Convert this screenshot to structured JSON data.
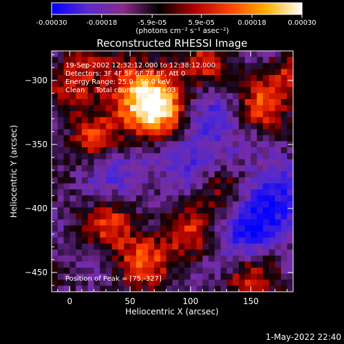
{
  "chart_data": {
    "type": "heatmap",
    "title": "Reconstructed RHESSI Image",
    "xlabel": "Heliocentric X (arcsec)",
    "ylabel": "Heliocentric Y (arcsec)",
    "xlim": [
      -15,
      185
    ],
    "ylim": [
      -465,
      -277
    ],
    "xticks": [
      0,
      50,
      100,
      150
    ],
    "yticks": [
      -300,
      -350,
      -400,
      -450
    ],
    "grid": false,
    "colorbar": {
      "range": [
        -0.0003,
        0.0003
      ],
      "ticks": [
        "-0.00030",
        "-0.00018",
        "-5.9e-05",
        "5.9e-05",
        "0.00018",
        "0.00030"
      ],
      "unit_text": "(photons cm⁻² s⁻¹ asec⁻²)",
      "colormap": [
        "#0000ff",
        "#5a2bcc",
        "#8a2a8a",
        "#000000",
        "#b00000",
        "#ff4500",
        "#ffb000",
        "#ffffff"
      ]
    },
    "annotations": [
      "19-Sep-2002 12:32:12.000 to 12:38:12.000",
      "Detectors: 3F 4F 5F 6F 7F 8F, Att 0",
      "Energy Range: 25.0 - 50.0 keV",
      "Clean     Total counts: 4.97E+03"
    ],
    "peak_text": "Position of Peak = [75,-327]",
    "peak": {
      "x": 75,
      "y": -327,
      "value": 0.0003
    },
    "bright_sources": [
      {
        "x": 75,
        "y": -327,
        "amp": 1.0,
        "w": 18
      },
      {
        "x": 55,
        "y": -310,
        "amp": 0.6,
        "w": 22
      },
      {
        "x": 160,
        "y": -322,
        "amp": 0.6,
        "w": 14
      },
      {
        "x": 178,
        "y": -298,
        "amp": 0.45,
        "w": 12
      },
      {
        "x": 35,
        "y": -410,
        "amp": 0.55,
        "w": 15
      },
      {
        "x": 60,
        "y": -440,
        "amp": 0.6,
        "w": 14
      },
      {
        "x": 125,
        "y": -385,
        "amp": 0.55,
        "w": 14
      },
      {
        "x": 95,
        "y": -420,
        "amp": 0.5,
        "w": 16
      },
      {
        "x": 5,
        "y": -300,
        "amp": 0.5,
        "w": 14
      },
      {
        "x": 20,
        "y": -345,
        "amp": 0.45,
        "w": 14
      },
      {
        "x": 150,
        "y": -455,
        "amp": 0.5,
        "w": 14
      },
      {
        "x": 115,
        "y": -290,
        "amp": 0.45,
        "w": 14
      }
    ],
    "dim_sources": [
      {
        "x": 95,
        "y": -355,
        "amp": -0.55,
        "w": 22
      },
      {
        "x": 165,
        "y": -395,
        "amp": -0.75,
        "w": 22
      },
      {
        "x": 120,
        "y": -330,
        "amp": -0.4,
        "w": 16
      },
      {
        "x": 40,
        "y": -375,
        "amp": -0.4,
        "w": 18
      },
      {
        "x": 140,
        "y": -425,
        "amp": -0.45,
        "w": 16
      }
    ]
  },
  "footer_timestamp": "1-May-2022 22:40"
}
